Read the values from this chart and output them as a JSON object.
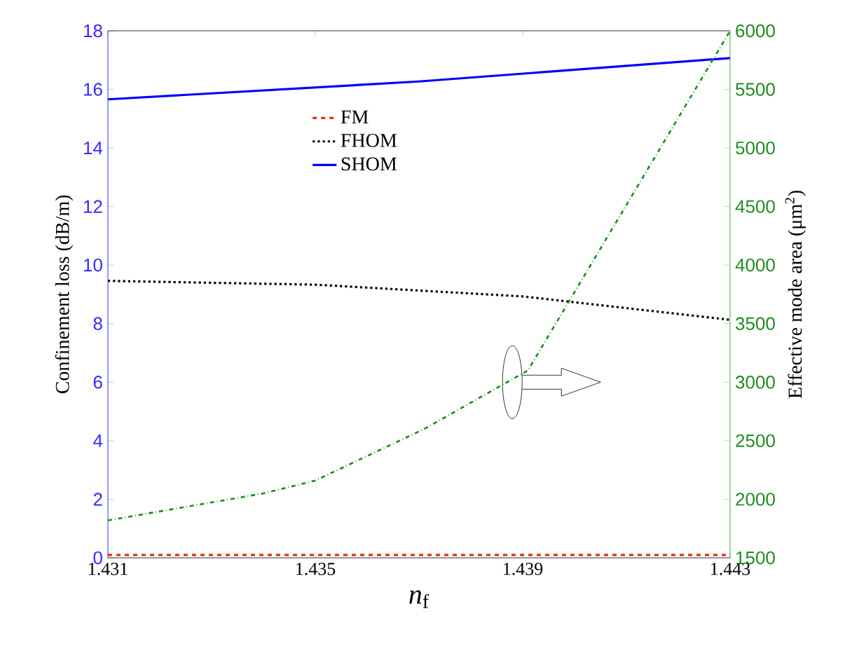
{
  "chart_data": {
    "type": "line",
    "xlabel": "*n*$_{f}$",
    "ylabel": "Confinement loss (dB/m)",
    "y2label": "Effective mode area (μm$^{2}$)",
    "xlim": [
      1.431,
      1.443
    ],
    "xticks": [
      1.431,
      1.435,
      1.439,
      1.443
    ],
    "ylim": [
      0,
      18
    ],
    "yticks": [
      0,
      2,
      4,
      6,
      8,
      10,
      12,
      14,
      16,
      18
    ],
    "y2lim": [
      1500,
      6000
    ],
    "y2ticks": [
      1500,
      2000,
      2500,
      3000,
      3500,
      4000,
      4500,
      5000,
      5500,
      6000
    ],
    "grid": false,
    "legend": "top",
    "series": [
      {
        "name": "FM",
        "color": "#e03010",
        "line_style": "dashed",
        "x": [
          1.431,
          1.435,
          1.439,
          1.443
        ],
        "values": [
          0.1,
          0.1,
          0.1,
          0.1
        ]
      },
      {
        "name": "FHOM",
        "color": "#000000",
        "line_style": "dotted",
        "x": [
          1.431,
          1.435,
          1.439,
          1.443
        ],
        "values": [
          9.46,
          9.33,
          8.93,
          8.13
        ]
      },
      {
        "name": "SHOM",
        "color": "#0000ff",
        "line_style": "solid",
        "x": [
          1.431,
          1.437,
          1.443
        ],
        "values": [
          15.66,
          16.27,
          17.07
        ]
      },
      {
        "color": "#1a8c1a",
        "line_style": "dashdotted",
        "axis": "y2",
        "x": [
          1.431,
          1.434,
          1.435,
          1.4371,
          1.4391,
          1.443
        ],
        "values": [
          1820,
          2050,
          2160,
          2600,
          3100,
          6000
        ]
      }
    ]
  }
}
